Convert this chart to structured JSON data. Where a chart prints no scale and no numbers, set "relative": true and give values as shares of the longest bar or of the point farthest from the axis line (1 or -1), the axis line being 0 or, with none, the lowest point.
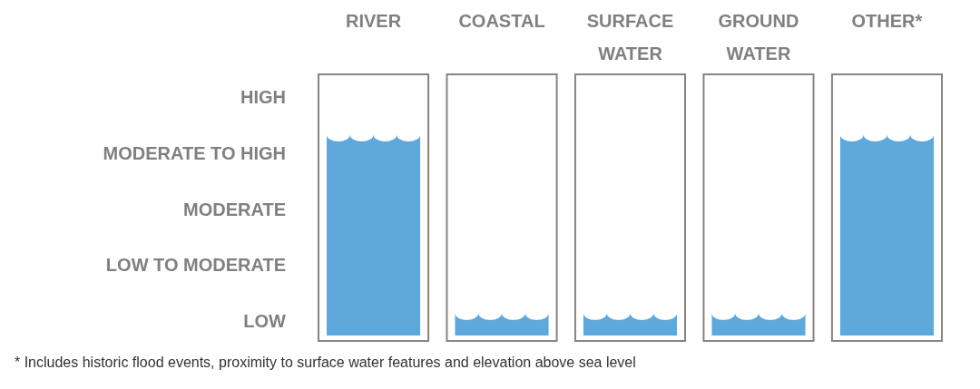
{
  "chart_data": {
    "type": "bar",
    "categories": [
      "RIVER",
      "COASTAL",
      "SURFACE WATER",
      "GROUND WATER",
      "OTHER*"
    ],
    "values": [
      1,
      0.08,
      0.08,
      0.08,
      1
    ],
    "color": "#5ea8dc",
    "relative": true,
    "annotations": [
      "HIGH",
      "MODERATE TO HIGH",
      "MODERATE",
      "LOW TO MODERATE",
      "LOW",
      "* Includes historic flood events, proximity to surface water features and elevation above sea level"
    ]
  }
}
